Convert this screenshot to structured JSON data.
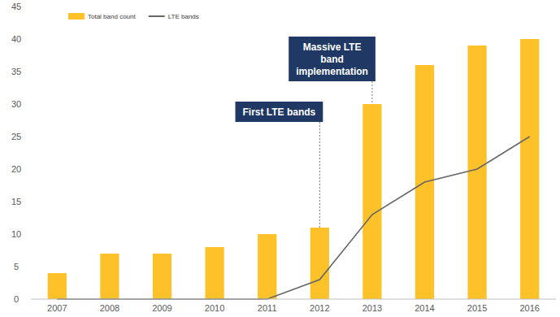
{
  "chart_data": {
    "type": "bar",
    "categories": [
      "2007",
      "2008",
      "2009",
      "2010",
      "2011",
      "2012",
      "2013",
      "2014",
      "2015",
      "2016"
    ],
    "series": [
      {
        "name": "Total band count",
        "type": "bar",
        "color": "#fdc12a",
        "values": [
          4,
          7,
          7,
          8,
          10,
          11,
          30,
          36,
          39,
          40
        ]
      },
      {
        "name": "LTE bands",
        "type": "line",
        "color": "#666666",
        "values": [
          0,
          0,
          0,
          0,
          0,
          3,
          13,
          18,
          20,
          25
        ]
      }
    ],
    "ylim": [
      0,
      45
    ],
    "yticks": [
      0,
      5,
      10,
      15,
      20,
      25,
      30,
      35,
      40,
      45
    ],
    "grid": false,
    "legend": "upper left",
    "annotations": [
      {
        "text": "First LTE bands",
        "x": "2012"
      },
      {
        "text": "Massive LTE band implementation",
        "x": "2013"
      }
    ]
  }
}
